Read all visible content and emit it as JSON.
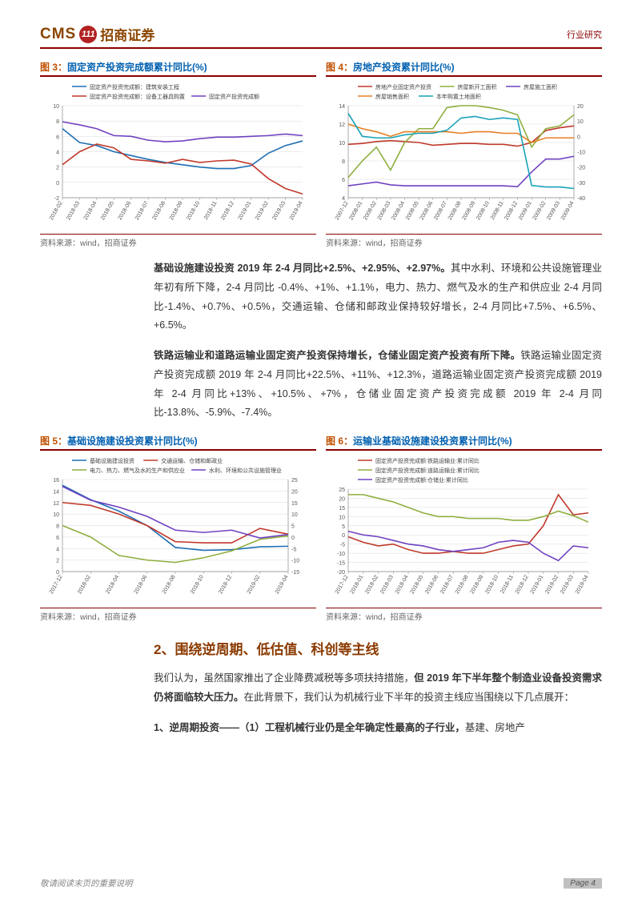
{
  "header": {
    "logo_cms": "CMS",
    "logo_cms_color": "#8b4500",
    "logo_circle_bg": "#b22222",
    "logo_circle_text": "111",
    "logo_zh": "招商证券",
    "logo_zh_color": "#8b4500",
    "right_label": "行业研究",
    "right_color": "#8b0000",
    "rule_color": "#8b0000"
  },
  "chart3": {
    "title_label": "图 3：",
    "title_text": "固定资产投资完成额累计同比(%)",
    "title_num_color": "#c05000",
    "title_text_color": "#0060b0",
    "source": "资料来源：wind，招商证券",
    "type": "line",
    "xlabels": [
      "2018-02",
      "2018-03",
      "2018-04",
      "2018-05",
      "2018-06",
      "2018-07",
      "2018-08",
      "2018-09",
      "2018-10",
      "2018-11",
      "2018-12",
      "2019-01",
      "2019-02",
      "2019-03",
      "2019-04"
    ],
    "ylim": [
      -2,
      10
    ],
    "yticks": [
      -2,
      0,
      2,
      4,
      6,
      8,
      10
    ],
    "series": [
      {
        "label": "固定资产投资完成额：建筑安装工程",
        "color": "#1f6fb4",
        "values": [
          7.0,
          5.2,
          4.8,
          4.0,
          3.5,
          3.0,
          2.6,
          2.3,
          2.0,
          1.8,
          1.8,
          2.2,
          3.8,
          4.8,
          5.4
        ]
      },
      {
        "label": "固定资产投资完成额：设备工器具购置",
        "color": "#c0392b",
        "values": [
          2.3,
          4.0,
          5.0,
          4.5,
          3.0,
          2.8,
          2.5,
          3.0,
          2.6,
          2.8,
          2.9,
          2.4,
          0.5,
          -0.8,
          -1.5
        ]
      },
      {
        "label": "固定资产投资完成额",
        "color": "#6f42c1",
        "values": [
          7.9,
          7.5,
          7.0,
          6.1,
          6.0,
          5.5,
          5.3,
          5.4,
          5.7,
          5.9,
          5.9,
          6.0,
          6.1,
          6.3,
          6.1
        ]
      }
    ],
    "bg": "#ffffff",
    "grid": "#d9d9d9",
    "label_fontsize": 7
  },
  "chart4": {
    "title_label": "图 4：",
    "title_text": "房地产投资累计同比(%)",
    "title_num_color": "#c05000",
    "title_text_color": "#0060b0",
    "source": "资料来源：wind，招商证券",
    "type": "line-dual",
    "xlabels": [
      "2007-12",
      "2008-01",
      "2008-02",
      "2008-03",
      "2008-04",
      "2008-05",
      "2008-06",
      "2008-07",
      "2008-08",
      "2008-09",
      "2008-10",
      "2008-11",
      "2008-12",
      "2009-01",
      "2009-02",
      "2009-03",
      "2009-04"
    ],
    "ylim_left": [
      4,
      14
    ],
    "yticks_left": [
      4,
      6,
      8,
      10,
      12,
      14
    ],
    "ylim_right": [
      -40,
      20
    ],
    "yticks_right": [
      -40,
      -30,
      -20,
      -10,
      0,
      10,
      20
    ],
    "series_left": [
      {
        "label": "房地产业固定资产投资",
        "color": "#c0392b",
        "values": [
          9.8,
          9.9,
          10.1,
          10.2,
          10.1,
          10.0,
          9.7,
          9.8,
          9.9,
          9.9,
          9.8,
          9.8,
          9.6,
          10.0,
          11.3,
          11.6,
          11.8
        ]
      },
      {
        "label": "房屋新开工面积",
        "color": "#8fae3e",
        "values": [
          6.2,
          8.0,
          9.5,
          7.0,
          10.0,
          11.5,
          11.5,
          13.8,
          14.0,
          14.0,
          13.8,
          13.5,
          13.0,
          9.5,
          11.5,
          11.8,
          13.0
        ]
      },
      {
        "label": "房屋施工面积",
        "color": "#6f42c1",
        "values": [
          5.3,
          5.5,
          5.7,
          5.4,
          5.3,
          5.3,
          5.3,
          5.3,
          5.3,
          5.3,
          5.3,
          5.3,
          5.2,
          6.8,
          8.2,
          8.2,
          8.5
        ]
      }
    ],
    "series_right": [
      {
        "label": "房屋销售面积",
        "color": "#e67e22",
        "values": [
          8,
          5,
          3,
          0,
          3,
          3,
          3,
          3,
          2,
          3,
          3,
          2,
          2,
          -4,
          -1,
          -1,
          -1
        ]
      },
      {
        "label": "本年购置土地面积",
        "color": "#17a2b8",
        "values": [
          15,
          0,
          -1,
          -1,
          1,
          2,
          2,
          4,
          12,
          13,
          11,
          12,
          11,
          -32,
          -33,
          -33,
          -34
        ]
      }
    ],
    "bg": "#ffffff",
    "grid": "#d9d9d9",
    "label_fontsize": 7
  },
  "para1": {
    "bold": "基础设施建设投资 2019 年 2-4 月同比+2.5%、+2.95%、+2.97%。",
    "rest": "其中水利、环境和公共设施管理业年初有所下降，2-4 月同比 -0.4%、+1%、+1.1%，电力、热力、燃气及水的生产和供应业 2-4 月同比-1.4%、+0.7%、+0.5%，交通运输、仓储和邮政业保持较好增长，2-4 月同比+7.5%、+6.5%、+6.5%。"
  },
  "para2": {
    "bold": "铁路运输业和道路运输业固定资产投资保持增长，仓储业固定资产投资有所下降。",
    "rest": "铁路运输业固定资产投资完成额 2019 年 2-4 月同比+22.5%、+11%、+12.3%，道路运输业固定资产投资完成额 2019 年 2-4 月同比+13%、+10.5%、+7%，仓储业固定资产投资完成额 2019 年 2-4 月同比-13.8%、-5.9%、-7.4%。"
  },
  "chart5": {
    "title_label": "图 5：",
    "title_text": "基础设施建设投资累计同比(%)",
    "title_num_color": "#c05000",
    "title_text_color": "#0060b0",
    "source": "资料来源：wind，招商证券",
    "type": "line-dual",
    "xlabels": [
      "2017-12",
      "2018-02",
      "2018-04",
      "2018-06",
      "2018-08",
      "2018-10",
      "2018-12",
      "2019-02",
      "2019-04"
    ],
    "ylim_left": [
      0,
      16
    ],
    "yticks_left": [
      0,
      2,
      4,
      6,
      8,
      10,
      12,
      14,
      16
    ],
    "ylim_right": [
      -15,
      25
    ],
    "yticks_right": [
      -15,
      -10,
      -5,
      0,
      5,
      10,
      15,
      20,
      25
    ],
    "series_left": [
      {
        "label": "基础设施建设投资",
        "color": "#1f6fb4",
        "values": [
          15.0,
          12.5,
          10.5,
          8.0,
          4.2,
          3.7,
          3.8,
          4.3,
          4.4
        ]
      },
      {
        "label": "交通运输、仓储和邮政业",
        "color": "#c0392b",
        "values": [
          12.0,
          11.5,
          10.0,
          8.0,
          5.2,
          5.0,
          5.0,
          7.5,
          6.5
        ]
      }
    ],
    "series_right": [
      {
        "label": "电力、热力、燃气及水的生产和供应业",
        "color": "#8fae3e",
        "values": [
          5,
          0,
          -8,
          -10,
          -11,
          -9,
          -6,
          -1,
          0.5
        ]
      },
      {
        "label": "水利、环境和公共设施管理业",
        "color": "#6f42c1",
        "values": [
          22,
          16,
          13,
          9,
          3,
          2,
          3,
          -0.4,
          1.1
        ]
      }
    ],
    "bg": "#ffffff",
    "grid": "#d9d9d9",
    "label_fontsize": 7
  },
  "chart6": {
    "title_label": "图 6：",
    "title_text": "运输业基础设施建设投资累计同比(%)",
    "title_num_color": "#c05000",
    "title_text_color": "#0060b0",
    "source": "资料来源：wind，招商证券",
    "type": "line",
    "xlabels": [
      "2017-12",
      "2018-01",
      "2018-02",
      "2018-03",
      "2018-04",
      "2018-05",
      "2018-06",
      "2018-07",
      "2018-08",
      "2018-09",
      "2018-10",
      "2018-11",
      "2018-12",
      "2019-01",
      "2019-02",
      "2019-03",
      "2019-04"
    ],
    "ylim": [
      -20,
      25
    ],
    "yticks": [
      -20,
      -15,
      -10,
      -5,
      0,
      5,
      10,
      15,
      20,
      25
    ],
    "series": [
      {
        "label": "固定资产投资完成额:铁路运输业:累计同比",
        "color": "#c0392b",
        "values": [
          -1,
          -4,
          -6,
          -5,
          -8,
          -10,
          -10,
          -9,
          -10,
          -10,
          -8,
          -6,
          -5,
          5,
          22,
          11,
          12
        ]
      },
      {
        "label": "固定资产投资完成额:道路运输业:累计同比",
        "color": "#8fae3e",
        "values": [
          22,
          22,
          20,
          18,
          15,
          12,
          10,
          10,
          9,
          9,
          9,
          8,
          8,
          10,
          13,
          10.5,
          7
        ]
      },
      {
        "label": "固定资产投资完成额:仓储业:累计同比",
        "color": "#6f42c1",
        "values": [
          2,
          0,
          -1,
          -3,
          -5,
          -6,
          -8,
          -9,
          -8,
          -7,
          -4,
          -3,
          -4,
          -10,
          -14,
          -6,
          -7
        ]
      }
    ],
    "bg": "#ffffff",
    "grid": "#d9d9d9",
    "label_fontsize": 7
  },
  "section2": {
    "title": "2、围绕逆周期、低估值、科创等主线",
    "color": "#8b3a00"
  },
  "para3": {
    "bold1": "我们认为，虽然国家推出了企业降费减税等多项扶持措施，",
    "bold2": "但 2019 年下半年整个制造业设备投资需求仍将面临较大压力。",
    "rest": "在此背景下，我们认为机械行业下半年的投资主线应当围绕以下几点展开："
  },
  "para4": {
    "text": "1、逆周期投资——（1）工程机械行业仍是全年确定性最高的子行业，",
    "rest": "基建、房地产"
  },
  "footer": {
    "left": "敬请阅读末页的重要说明",
    "page": "Page 4"
  }
}
